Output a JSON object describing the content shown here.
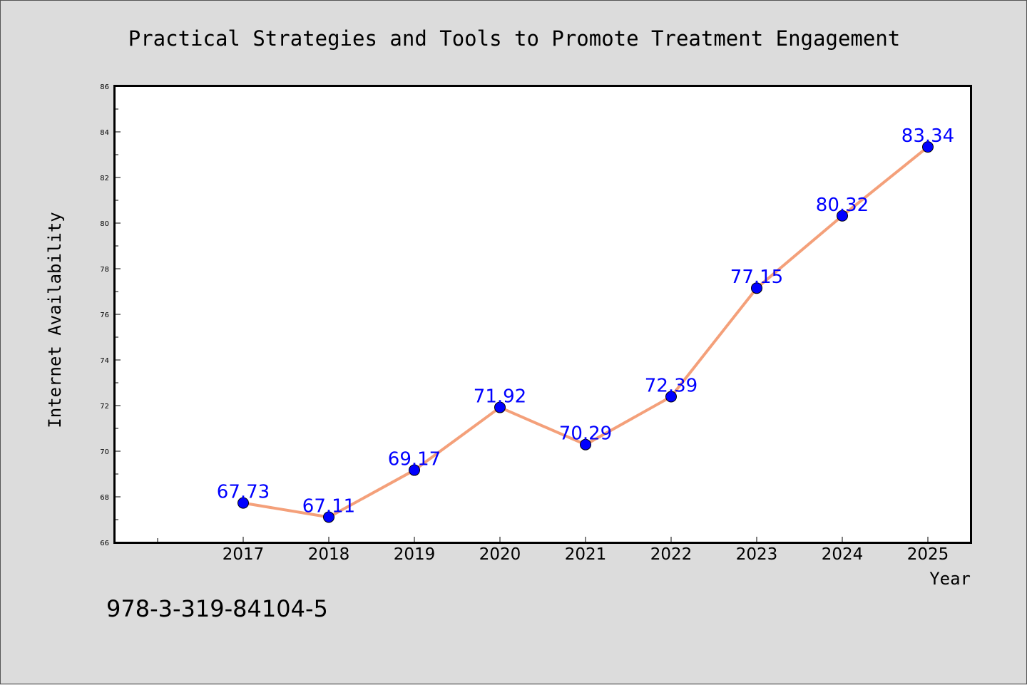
{
  "chart_data": {
    "type": "line",
    "title": "Practical Strategies and Tools to Promote Treatment Engagement",
    "xlabel": "Year",
    "ylabel": "Internet Availability",
    "categories": [
      "2017",
      "2018",
      "2019",
      "2020",
      "2021",
      "2022",
      "2023",
      "2024",
      "2025"
    ],
    "series": [
      {
        "values": [
          67.73,
          67.11,
          69.17,
          71.92,
          70.29,
          72.39,
          77.15,
          80.32,
          83.34
        ],
        "labels": [
          "67.73",
          "67.11",
          "69.17",
          "71.92",
          "70.29",
          "72.39",
          "77.15",
          "80.32",
          "83.34"
        ]
      }
    ],
    "ylim": [
      66,
      86
    ],
    "yticks": [
      "66",
      "68",
      "70",
      "72",
      "74",
      "76",
      "78",
      "80",
      "82",
      "84",
      "86"
    ],
    "grid": false,
    "line_color": "#f4a07a",
    "marker_color": "#0000ff",
    "label_color": "#0000ff"
  },
  "footer_text": "978-3-319-84104-5"
}
